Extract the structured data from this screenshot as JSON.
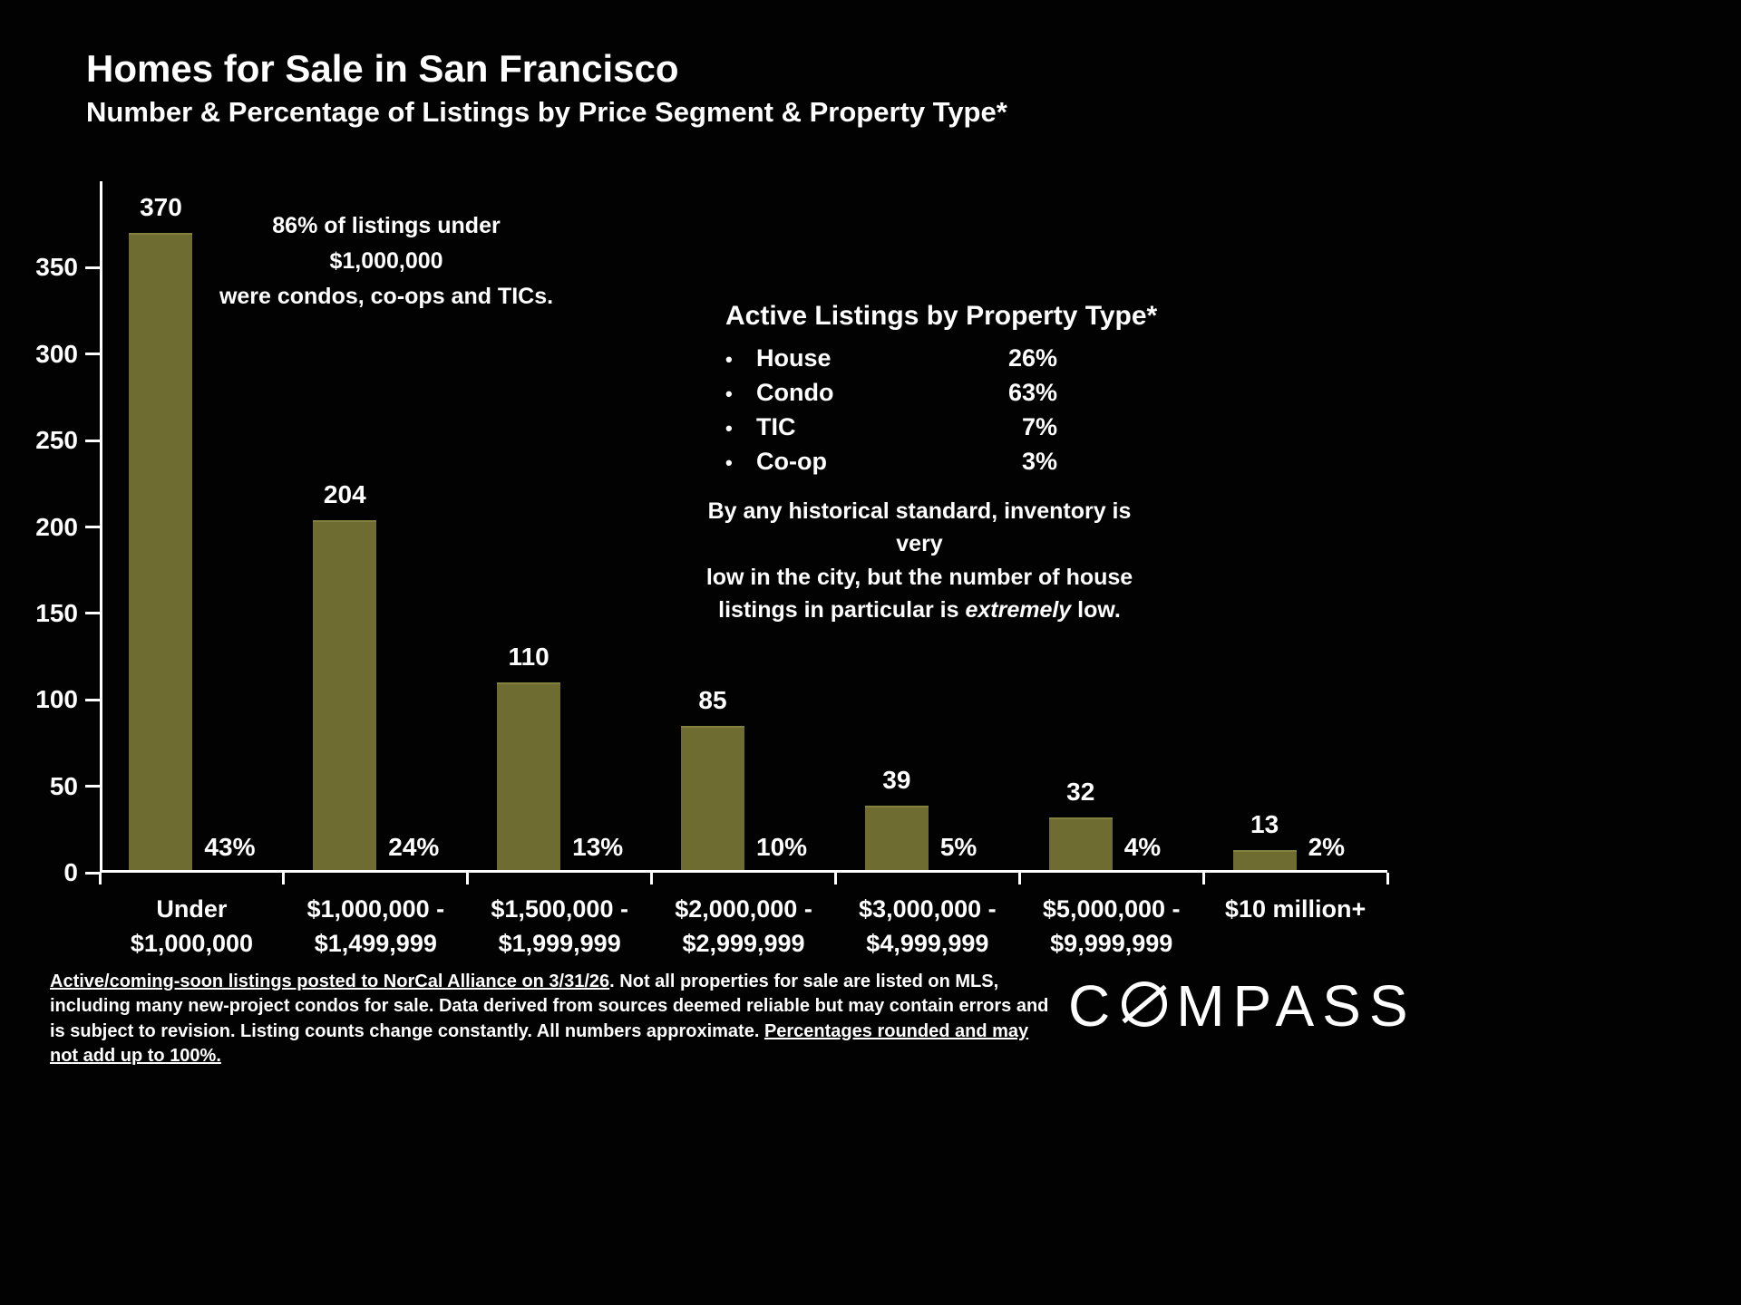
{
  "title": "Homes for Sale in San Francisco",
  "subtitle": "Number & Percentage of Listings by Price Segment & Property Type*",
  "chart_data": {
    "type": "bar",
    "categories": [
      "Under\n$1,000,000",
      "$1,000,000 -\n$1,499,999",
      "$1,500,000 -\n$1,999,999",
      "$2,000,000 -\n$2,999,999",
      "$3,000,000 -\n$4,999,999",
      "$5,000,000 -\n$9,999,999",
      "$10 million+"
    ],
    "values": [
      370,
      204,
      110,
      85,
      39,
      32,
      13
    ],
    "percent_labels": [
      "43%",
      "24%",
      "13%",
      "10%",
      "5%",
      "4%",
      "2%"
    ],
    "title": "Homes for Sale in San Francisco",
    "xlabel": "",
    "ylabel": "",
    "ylim": [
      0,
      400
    ],
    "yticks": [
      0,
      50,
      100,
      150,
      200,
      250,
      300,
      350
    ],
    "grid": false,
    "legend_position": "none",
    "bar_color": "#6e6c30",
    "background_color": "#020202",
    "text_color": "#ffffff"
  },
  "annotations": {
    "under_1m_note": "86% of listings under $1,000,000\nwere condos, co-ops and TICs.",
    "property_type_title": "Active Listings by Property Type*",
    "property_types": [
      {
        "label": "House",
        "pct": "26%"
      },
      {
        "label": "Condo",
        "pct": "63%"
      },
      {
        "label": "TIC",
        "pct": "7%"
      },
      {
        "label": "Co-op",
        "pct": "3%"
      }
    ],
    "inventory_before": "By any historical standard, inventory is very\nlow in the city, but the number of house\nlistings in particular is ",
    "inventory_italic": "extremely",
    "inventory_after": " low."
  },
  "footer": {
    "underline1": "Active/coming-soon listings posted to NorCal Alliance on 3/31/26",
    "middle": ". Not all properties for sale are listed on MLS, including many new-project condos for sale. Data derived from sources deemed reliable but may contain errors and is subject to revision. Listing counts change constantly. All numbers approximate. ",
    "underline2": "Percentages rounded and may not add up to 100%."
  },
  "logo": {
    "prefix": "C",
    "rest": "MPASS",
    "label": "COMPASS"
  }
}
